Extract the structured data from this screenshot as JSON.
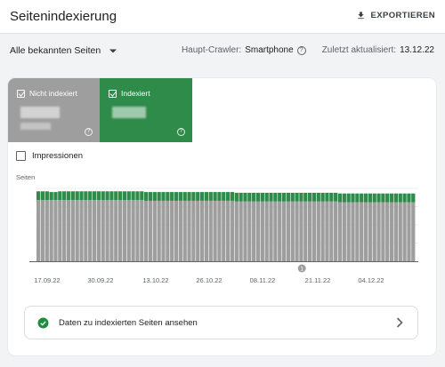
{
  "header": {
    "title": "Seitenindexierung",
    "export_label": "EXPORTIEREN"
  },
  "filters": {
    "selected": "Alle bekannten Seiten",
    "crawler_label": "Haupt-Crawler:",
    "crawler_value": "Smartphone",
    "updated_label": "Zuletzt aktualisiert:",
    "updated_value": "13.12.22"
  },
  "tiles": [
    {
      "label": "Nicht indexiert",
      "checked": true,
      "color": "#9e9e9e"
    },
    {
      "label": "Indexiert",
      "checked": true,
      "color": "#2e8b4a"
    }
  ],
  "impressions": {
    "label": "Impressionen",
    "checked": false
  },
  "chart_data": {
    "type": "bar",
    "stacked": true,
    "ylabel": "Seiten",
    "x_tick_labels": [
      "17.09.22",
      "30.09.22",
      "13.10.22",
      "26.10.22",
      "08.11.22",
      "21.11.22",
      "04.12.22"
    ],
    "annotation": {
      "label": "1",
      "at_date": "18.11.22"
    },
    "series": [
      {
        "color": "#9e9e9e",
        "values": [
          0.84,
          0.84,
          0.84,
          0.84,
          0.84,
          0.84,
          0.84,
          0.84,
          0.84,
          0.84,
          0.84,
          0.84,
          0.84,
          0.84,
          0.84,
          0.84,
          0.84,
          0.84,
          0.84,
          0.84,
          0.84,
          0.84,
          0.84,
          0.84,
          0.84,
          0.83,
          0.83,
          0.83,
          0.83,
          0.83,
          0.83,
          0.83,
          0.83,
          0.83,
          0.83,
          0.83,
          0.83,
          0.83,
          0.83,
          0.83,
          0.83,
          0.83,
          0.83,
          0.83,
          0.83,
          0.83,
          0.82,
          0.82,
          0.82,
          0.82,
          0.82,
          0.82,
          0.82,
          0.82,
          0.82,
          0.82,
          0.82,
          0.82,
          0.82,
          0.82,
          0.82,
          0.82,
          0.82,
          0.82,
          0.82,
          0.82,
          0.82,
          0.82,
          0.82,
          0.82,
          0.81,
          0.81,
          0.81,
          0.81,
          0.81,
          0.81,
          0.81,
          0.81,
          0.81,
          0.81,
          0.81,
          0.81,
          0.81,
          0.81,
          0.81,
          0.81,
          0.81,
          0.81
        ]
      },
      {
        "color": "#2e8b4a",
        "values": [
          0.12,
          0.12,
          0.12,
          0.11,
          0.11,
          0.12,
          0.12,
          0.12,
          0.12,
          0.12,
          0.12,
          0.12,
          0.12,
          0.12,
          0.12,
          0.12,
          0.12,
          0.12,
          0.12,
          0.12,
          0.12,
          0.12,
          0.12,
          0.12,
          0.12,
          0.12,
          0.12,
          0.12,
          0.12,
          0.12,
          0.12,
          0.12,
          0.12,
          0.12,
          0.12,
          0.12,
          0.12,
          0.12,
          0.12,
          0.12,
          0.12,
          0.12,
          0.12,
          0.12,
          0.12,
          0.12,
          0.12,
          0.12,
          0.12,
          0.12,
          0.12,
          0.12,
          0.12,
          0.12,
          0.12,
          0.12,
          0.12,
          0.12,
          0.12,
          0.12,
          0.12,
          0.12,
          0.12,
          0.12,
          0.12,
          0.12,
          0.12,
          0.12,
          0.12,
          0.12,
          0.12,
          0.12,
          0.12,
          0.12,
          0.12,
          0.12,
          0.12,
          0.12,
          0.12,
          0.12,
          0.12,
          0.12,
          0.12,
          0.12,
          0.12,
          0.12,
          0.12,
          0.12
        ]
      }
    ]
  },
  "cta": {
    "label": "Daten zu indexierten Seiten ansehen"
  }
}
